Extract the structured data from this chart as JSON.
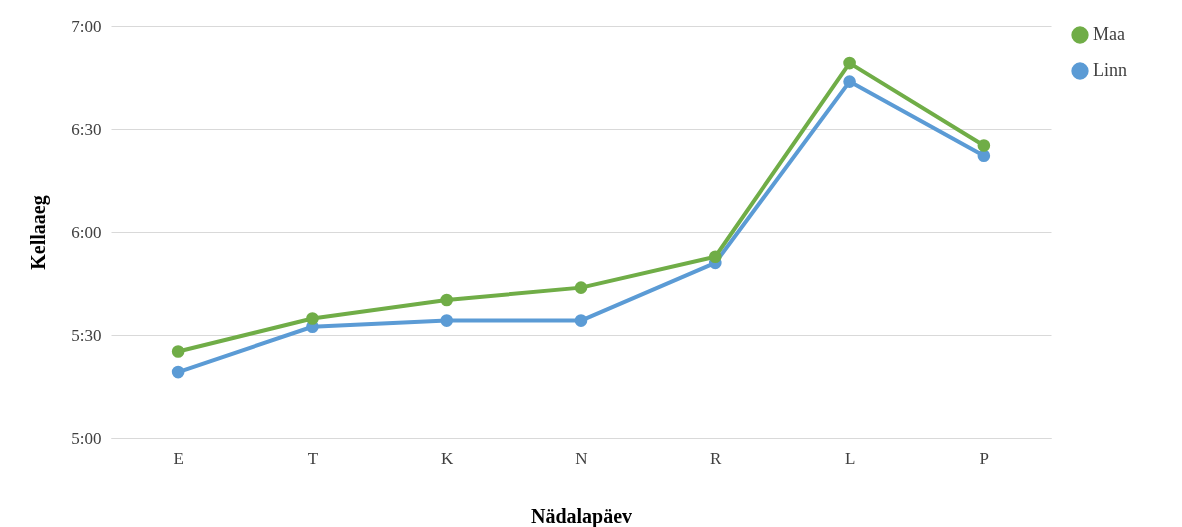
{
  "chart_data": {
    "type": "line",
    "xlabel": "Nädalapäev",
    "ylabel": "Kellaaeg",
    "categories": [
      "E",
      "T",
      "K",
      "N",
      "R",
      "L",
      "P"
    ],
    "series": [
      {
        "name": "Maa",
        "color": "#70ad47",
        "values": [
          5.42,
          5.58,
          5.67,
          5.73,
          5.88,
          6.82,
          6.42
        ]
      },
      {
        "name": "Linn",
        "color": "#5b9bd5",
        "values": [
          5.32,
          5.54,
          5.57,
          5.57,
          5.85,
          6.73,
          6.37
        ]
      }
    ],
    "ylim": [
      5,
      7
    ],
    "yticks": [
      {
        "value": 5,
        "label": "5:00"
      },
      {
        "value": 5.5,
        "label": "5:30"
      },
      {
        "value": 6,
        "label": "6:00"
      },
      {
        "value": 6.5,
        "label": "6:30"
      },
      {
        "value": 7,
        "label": "7:00"
      }
    ],
    "grid": "y",
    "legend": "right",
    "marker": "circle"
  }
}
